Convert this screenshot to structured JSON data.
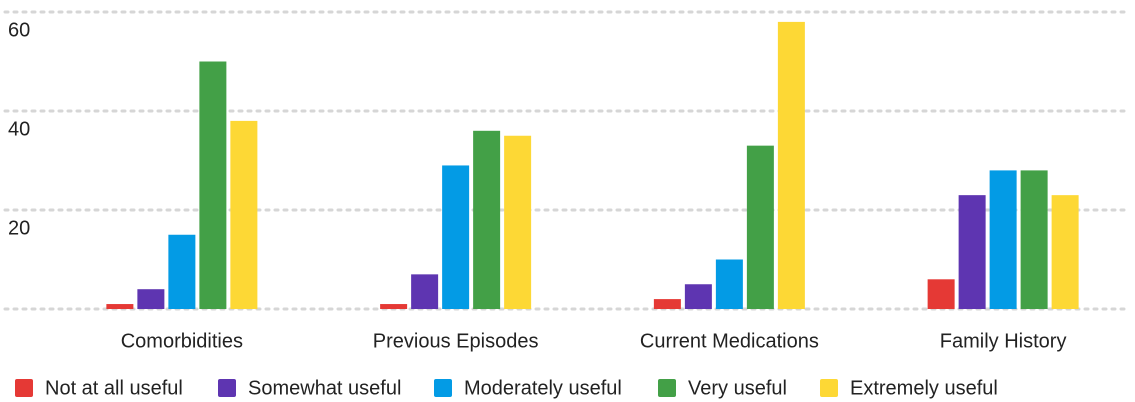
{
  "chart_data": {
    "type": "bar",
    "categories": [
      "Comorbidities",
      "Previous Episodes",
      "Current Medications",
      "Family History"
    ],
    "series": [
      {
        "name": "Not at all useful",
        "color": "#e53935",
        "values": [
          1,
          1,
          2,
          6
        ]
      },
      {
        "name": "Somewhat useful",
        "color": "#5e35b1",
        "values": [
          4,
          7,
          5,
          23
        ]
      },
      {
        "name": "Moderately useful",
        "color": "#039be5",
        "values": [
          15,
          29,
          10,
          28
        ]
      },
      {
        "name": "Very useful",
        "color": "#43a047",
        "values": [
          50,
          36,
          33,
          28
        ]
      },
      {
        "name": "Extremely useful",
        "color": "#fdd835",
        "values": [
          38,
          35,
          58,
          23
        ]
      }
    ],
    "ylim": [
      0,
      60
    ],
    "yticks": [
      20,
      40,
      60
    ],
    "grid": true,
    "legend": "bottom"
  }
}
